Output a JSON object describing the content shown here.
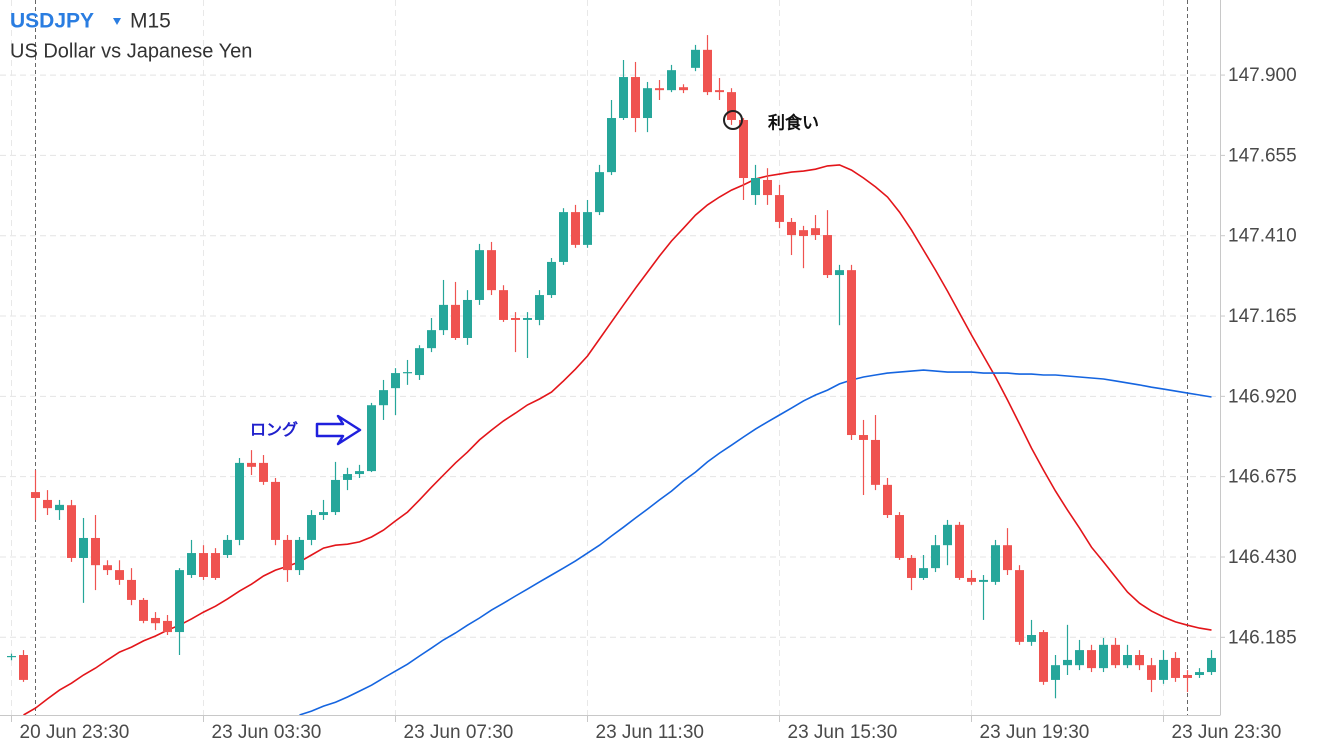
{
  "chart_data": {
    "type": "candlestick",
    "title": "USDJPY",
    "timeframe": "M15",
    "subtitle": "US Dollar vs Japanese Yen",
    "categories": [
      "20 Jun 23:30",
      null,
      null,
      null,
      null,
      null,
      null,
      null,
      null,
      null,
      null,
      null,
      null,
      null,
      null,
      null,
      "23 Jun 03:30",
      null,
      null,
      null,
      null,
      null,
      null,
      null,
      null,
      null,
      null,
      null,
      null,
      null,
      null,
      null,
      "23 Jun 07:30",
      null,
      null,
      null,
      null,
      null,
      null,
      null,
      null,
      null,
      null,
      null,
      null,
      null,
      null,
      null,
      "23 Jun 11:30",
      null,
      null,
      null,
      null,
      null,
      null,
      null,
      null,
      null,
      null,
      null,
      null,
      null,
      null,
      null,
      "23 Jun 15:30",
      null,
      null,
      null,
      null,
      null,
      null,
      null,
      null,
      null,
      null,
      null,
      null,
      null,
      null,
      null,
      "23 Jun 19:30",
      null,
      null,
      null,
      null,
      null,
      null,
      null,
      null,
      null,
      null,
      null,
      null,
      null,
      null,
      null,
      "23 Jun 23:30",
      null,
      null,
      null,
      null
    ],
    "open": [
      146.125,
      146.131,
      146.628,
      146.604,
      146.573,
      146.588,
      146.427,
      146.488,
      146.405,
      146.39,
      146.36,
      146.299,
      146.244,
      146.235,
      146.201,
      146.375,
      146.442,
      146.442,
      146.436,
      146.482,
      146.717,
      146.717,
      146.659,
      146.482,
      146.39,
      146.482,
      146.558,
      146.567,
      146.665,
      146.683,
      146.692,
      146.893,
      146.945,
      146.991,
      146.985,
      147.067,
      147.122,
      147.199,
      147.098,
      147.214,
      147.366,
      147.244,
      147.159,
      147.153,
      147.153,
      147.229,
      147.33,
      147.482,
      147.382,
      147.482,
      147.604,
      147.769,
      147.894,
      147.769,
      147.86,
      147.854,
      147.863,
      147.922,
      147.977,
      147.854,
      147.848,
      147.763,
      147.534,
      147.58,
      147.534,
      147.452,
      147.427,
      147.433,
      147.412,
      147.29,
      147.305,
      146.802,
      146.787,
      146.65,
      146.558,
      146.427,
      146.366,
      146.396,
      146.466,
      146.528,
      146.366,
      146.354,
      146.354,
      146.466,
      146.39,
      146.171,
      146.201,
      146.055,
      146.1,
      146.1,
      146.146,
      146.091,
      146.162,
      146.1,
      146.131,
      146.1,
      146.055,
      146.122,
      146.07,
      146.07,
      146.079
    ],
    "high": [
      146.135,
      146.146,
      146.695,
      146.634,
      146.604,
      146.604,
      146.549,
      146.558,
      146.42,
      146.42,
      146.396,
      146.305,
      146.262,
      146.253,
      146.396,
      146.482,
      146.466,
      146.457,
      146.497,
      146.732,
      146.756,
      146.741,
      146.671,
      146.497,
      146.491,
      146.573,
      146.604,
      146.72,
      146.702,
      146.711,
      146.9,
      146.97,
      147.006,
      147.031,
      147.076,
      147.159,
      147.275,
      147.269,
      147.244,
      147.385,
      147.391,
      147.259,
      147.177,
      147.177,
      147.244,
      147.342,
      147.494,
      147.504,
      147.519,
      147.626,
      147.824,
      147.946,
      147.94,
      147.879,
      147.885,
      147.931,
      147.872,
      147.992,
      148.022,
      147.891,
      147.86,
      147.769,
      147.626,
      147.616,
      147.565,
      147.464,
      147.44,
      147.473,
      147.488,
      147.321,
      147.321,
      146.848,
      146.863,
      146.671,
      146.567,
      146.436,
      146.436,
      146.497,
      146.543,
      146.537,
      146.39,
      146.375,
      146.482,
      146.518,
      146.405,
      146.238,
      146.207,
      146.131,
      146.223,
      146.177,
      146.162,
      146.183,
      146.183,
      146.162,
      146.146,
      146.122,
      146.146,
      146.14,
      146.085,
      146.091,
      146.146
    ],
    "low": [
      146.115,
      146.049,
      146.543,
      146.558,
      146.543,
      146.415,
      146.29,
      146.329,
      146.375,
      146.345,
      146.283,
      146.228,
      146.207,
      146.192,
      146.131,
      146.366,
      146.36,
      146.36,
      146.427,
      146.466,
      146.68,
      146.65,
      146.466,
      146.354,
      146.375,
      146.466,
      146.543,
      146.558,
      146.634,
      146.671,
      146.689,
      146.848,
      146.863,
      146.955,
      146.97,
      147.055,
      147.107,
      147.092,
      147.077,
      147.199,
      147.229,
      147.147,
      147.055,
      147.037,
      147.137,
      147.22,
      147.321,
      147.373,
      147.373,
      147.473,
      147.595,
      147.763,
      147.726,
      147.726,
      147.824,
      147.848,
      147.845,
      147.912,
      147.839,
      147.824,
      147.748,
      147.519,
      147.504,
      147.504,
      147.433,
      147.351,
      147.311,
      147.397,
      147.281,
      147.137,
      146.787,
      146.619,
      146.634,
      146.549,
      146.421,
      146.329,
      146.36,
      146.384,
      146.405,
      146.36,
      146.345,
      146.238,
      146.345,
      146.375,
      146.162,
      146.159,
      146.04,
      145.999,
      146.07,
      146.085,
      146.079,
      146.079,
      146.091,
      146.091,
      146.085,
      146.018,
      146.043,
      146.049,
      146.018,
      146.061,
      146.07
    ],
    "close": [
      146.128,
      146.055,
      146.61,
      146.579,
      146.589,
      146.427,
      146.488,
      146.405,
      146.39,
      146.36,
      146.299,
      146.235,
      146.228,
      146.201,
      146.39,
      146.442,
      146.369,
      146.366,
      146.482,
      146.717,
      146.705,
      146.659,
      146.482,
      146.39,
      146.482,
      146.558,
      146.567,
      146.665,
      146.683,
      146.692,
      146.893,
      146.939,
      146.991,
      146.994,
      147.067,
      147.122,
      147.199,
      147.098,
      147.214,
      147.366,
      147.244,
      147.153,
      147.153,
      147.159,
      147.229,
      147.33,
      147.482,
      147.382,
      147.482,
      147.604,
      147.769,
      147.894,
      147.769,
      147.86,
      147.854,
      147.915,
      147.854,
      147.977,
      147.848,
      147.848,
      147.763,
      147.586,
      147.586,
      147.534,
      147.452,
      147.412,
      147.409,
      147.412,
      147.29,
      147.305,
      146.802,
      146.787,
      146.65,
      146.558,
      146.427,
      146.366,
      146.396,
      146.466,
      146.528,
      146.366,
      146.354,
      146.36,
      146.466,
      146.39,
      146.171,
      146.192,
      146.049,
      146.1,
      146.116,
      146.146,
      146.091,
      146.162,
      146.1,
      146.131,
      146.1,
      146.055,
      146.116,
      146.061,
      146.061,
      146.079,
      146.122
    ],
    "up_color": "#26a69a",
    "down_color": "#ef5350",
    "overlays": [
      {
        "color": "#e3151a",
        "values": [
          null,
          145.948,
          145.969,
          145.997,
          146.024,
          146.045,
          146.07,
          146.091,
          146.116,
          146.14,
          146.155,
          146.174,
          146.189,
          146.207,
          146.222,
          146.241,
          146.262,
          146.28,
          146.302,
          146.326,
          146.347,
          146.372,
          146.39,
          146.402,
          146.415,
          146.436,
          146.457,
          146.466,
          146.469,
          146.476,
          146.491,
          146.512,
          146.54,
          146.567,
          146.604,
          146.643,
          146.68,
          146.717,
          146.75,
          146.787,
          146.817,
          146.845,
          146.869,
          146.894,
          146.912,
          146.933,
          146.967,
          147.003,
          147.043,
          147.095,
          147.147,
          147.199,
          147.25,
          147.299,
          147.348,
          147.394,
          147.433,
          147.473,
          147.504,
          147.528,
          147.549,
          147.565,
          147.583,
          147.592,
          147.598,
          147.604,
          147.607,
          147.613,
          147.623,
          147.626,
          147.61,
          147.586,
          147.559,
          147.528,
          147.482,
          147.427,
          147.366,
          147.305,
          147.241,
          147.174,
          147.107,
          147.043,
          146.979,
          146.909,
          146.836,
          146.762,
          146.695,
          146.631,
          146.573,
          146.518,
          146.46,
          146.415,
          146.369,
          146.323,
          146.289,
          146.265,
          146.247,
          146.232,
          146.222,
          146.213,
          146.207
        ]
      },
      {
        "color": "#1565e0",
        "values": [
          null,
          null,
          null,
          null,
          null,
          null,
          null,
          null,
          null,
          null,
          null,
          null,
          null,
          null,
          null,
          null,
          null,
          null,
          null,
          null,
          null,
          null,
          null,
          null,
          145.948,
          145.96,
          145.975,
          145.987,
          146.003,
          146.021,
          146.039,
          146.061,
          146.082,
          146.103,
          146.128,
          146.152,
          146.177,
          146.198,
          146.222,
          146.244,
          146.268,
          146.289,
          146.311,
          146.332,
          146.354,
          146.375,
          146.396,
          146.418,
          146.442,
          146.466,
          146.494,
          146.521,
          146.549,
          146.576,
          146.604,
          146.631,
          146.662,
          146.689,
          146.72,
          146.747,
          146.771,
          146.796,
          146.82,
          146.842,
          146.863,
          146.884,
          146.906,
          146.924,
          146.939,
          146.958,
          146.97,
          146.979,
          146.985,
          146.991,
          146.994,
          146.997,
          147.0,
          146.997,
          146.994,
          146.994,
          146.994,
          146.991,
          146.991,
          146.991,
          146.988,
          146.988,
          146.985,
          146.985,
          146.982,
          146.979,
          146.976,
          146.973,
          146.967,
          146.961,
          146.955,
          146.948,
          146.942,
          146.936,
          146.93,
          146.924,
          146.918
        ]
      }
    ],
    "ylim": [
      145.948,
      148.129
    ],
    "yticks": [
      {
        "value": 147.9,
        "label": "147.900"
      },
      147.655,
      {
        "value": 147.41,
        "label": "147.410"
      },
      147.165,
      {
        "value": 146.92,
        "label": "146.920"
      },
      146.675,
      {
        "value": 146.43,
        "label": "146.430"
      },
      146.185
    ],
    "grid": true,
    "annotations": [
      {
        "text": "利食い"
      },
      {
        "text": "ロング"
      }
    ]
  }
}
